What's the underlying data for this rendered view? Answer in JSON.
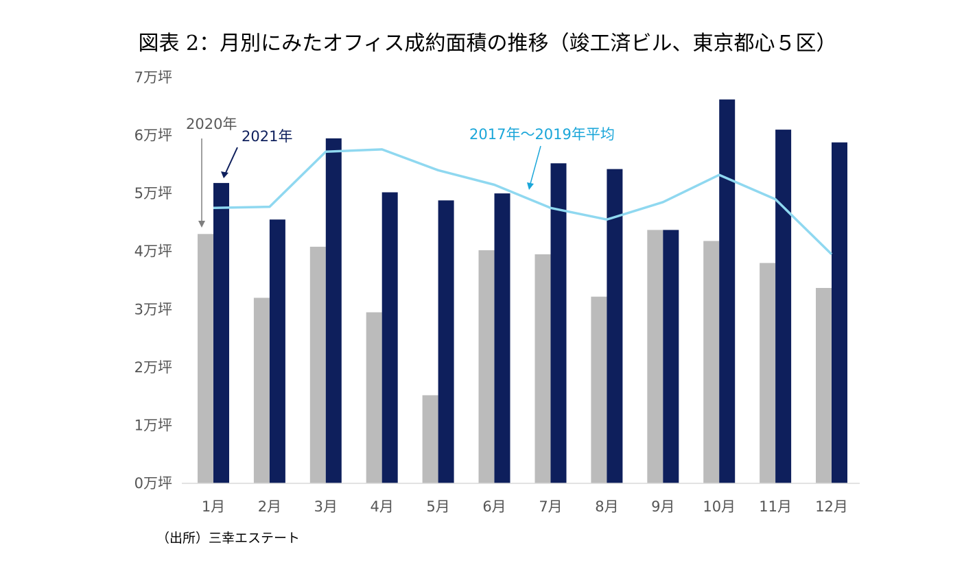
{
  "title": "図表 2：月別にみたオフィス成約面積の推移（竣工済ビル、東京都心５区）",
  "source": "（出所）三幸エステート",
  "chart_data": {
    "type": "bar",
    "categories": [
      "1月",
      "2月",
      "3月",
      "4月",
      "5月",
      "6月",
      "7月",
      "8月",
      "9月",
      "10月",
      "11月",
      "12月"
    ],
    "series": [
      {
        "name": "2020年",
        "kind": "bar",
        "color": "#bbbbbb",
        "values": [
          4.3,
          3.2,
          4.08,
          2.95,
          1.52,
          4.02,
          3.95,
          3.22,
          4.37,
          4.18,
          3.8,
          3.37
        ]
      },
      {
        "name": "2021年",
        "kind": "bar",
        "color": "#0e1f5c",
        "values": [
          5.18,
          4.55,
          5.95,
          5.02,
          4.88,
          5.0,
          5.52,
          5.42,
          4.37,
          6.62,
          6.1,
          5.88
        ]
      },
      {
        "name": "2017年～2019年平均",
        "kind": "line",
        "color": "#8fd8f0",
        "values": [
          4.75,
          4.77,
          5.72,
          5.76,
          5.4,
          5.15,
          4.75,
          4.55,
          4.85,
          5.32,
          4.9,
          3.95
        ]
      }
    ],
    "yticks": [
      "0万坪",
      "1万坪",
      "2万坪",
      "3万坪",
      "4万坪",
      "5万坪",
      "6万坪",
      "7万坪"
    ],
    "ylim": [
      0,
      7
    ],
    "yunit": "万坪",
    "annotations": {
      "a2020": {
        "text": "2020年",
        "color": "#595959"
      },
      "a2021": {
        "text": "2021年",
        "color": "#0e1f5c"
      },
      "avg": {
        "text": "2017年～2019年平均",
        "color": "#1aa6d9"
      }
    }
  }
}
